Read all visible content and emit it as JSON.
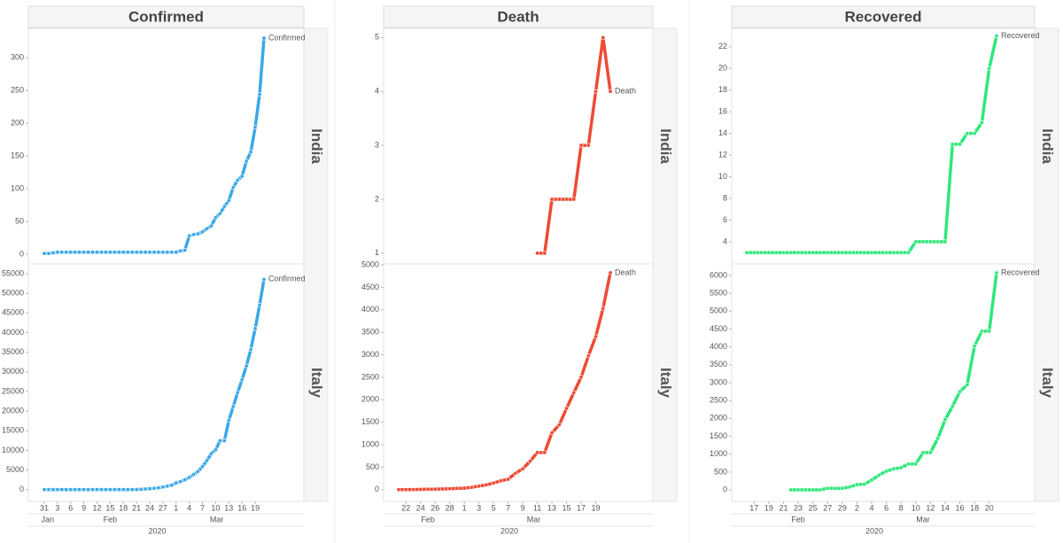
{
  "chart_data": [
    {
      "type": "line",
      "title": "Confirmed",
      "categories": [
        "31",
        null,
        null,
        "3",
        null,
        null,
        "6",
        null,
        null,
        "9",
        null,
        null,
        "12",
        null,
        null,
        "15",
        null,
        null,
        "18",
        null,
        null,
        "21",
        null,
        null,
        "24",
        null,
        null,
        "27",
        null,
        null,
        "1",
        null,
        null,
        "4",
        null,
        null,
        "7",
        null,
        null,
        "10",
        null,
        null,
        "13",
        null,
        null,
        "16",
        null,
        null,
        "19",
        null,
        null
      ],
      "months": [
        "Jan",
        "Feb",
        "Mar"
      ],
      "year": "2020",
      "panels": [
        {
          "row": "India",
          "ylim": [
            -15,
            345
          ],
          "yticks": [
            0,
            50,
            100,
            150,
            200,
            250,
            300
          ],
          "series": [
            {
              "name": "Confirmed",
              "color": "#3aa8e6",
              "values": [
                1,
                1,
                2,
                3,
                3,
                3,
                3,
                3,
                3,
                3,
                3,
                3,
                3,
                3,
                3,
                3,
                3,
                3,
                3,
                3,
                3,
                3,
                3,
                3,
                3,
                3,
                3,
                3,
                3,
                3,
                3,
                5,
                6,
                28,
                30,
                31,
                34,
                39,
                43,
                56,
                62,
                73,
                82,
                102,
                113,
                119,
                142,
                156,
                194,
                244,
                330
              ]
            }
          ]
        },
        {
          "row": "Italy",
          "ylim": [
            -3000,
            57500
          ],
          "yticks": [
            0,
            5000,
            10000,
            15000,
            20000,
            25000,
            30000,
            35000,
            40000,
            45000,
            50000,
            55000
          ],
          "series": [
            {
              "name": "Confirmed",
              "color": "#3aa8e6",
              "values": [
                2,
                2,
                2,
                2,
                2,
                2,
                2,
                2,
                2,
                2,
                2,
                2,
                2,
                2,
                2,
                2,
                2,
                2,
                2,
                2,
                2,
                20,
                62,
                155,
                229,
                322,
                453,
                655,
                888,
                1128,
                1694,
                2036,
                2502,
                3089,
                3858,
                4636,
                5883,
                7375,
                9172,
                10149,
                12462,
                12462,
                17660,
                21157,
                24747,
                27980,
                31506,
                35713,
                41035,
                47021,
                53578
              ]
            }
          ]
        }
      ]
    },
    {
      "type": "line",
      "title": "Death",
      "categories": [
        null,
        "22",
        null,
        "24",
        null,
        "26",
        null,
        "28",
        null,
        "1",
        null,
        "3",
        null,
        "5",
        null,
        "7",
        null,
        "9",
        null,
        "11",
        null,
        "13",
        null,
        "15",
        null,
        "17",
        null,
        "19",
        null,
        null
      ],
      "months": [
        "Feb",
        "Mar"
      ],
      "year": "2020",
      "panels": [
        {
          "row": "India",
          "ylim": [
            0.8,
            5.17
          ],
          "yticks": [
            1,
            2,
            3,
            4,
            5
          ],
          "series": [
            {
              "name": "Death",
              "color": "#ee4a34",
              "values": [
                null,
                null,
                null,
                null,
                null,
                null,
                null,
                null,
                null,
                null,
                null,
                null,
                null,
                null,
                null,
                null,
                null,
                null,
                null,
                1,
                1,
                2,
                2,
                2,
                2,
                3,
                3,
                4,
                5,
                4
              ]
            }
          ]
        },
        {
          "row": "Italy",
          "ylim": [
            -260,
            5020
          ],
          "yticks": [
            0,
            500,
            1000,
            1500,
            2000,
            2500,
            3000,
            3500,
            4000,
            4500,
            5000
          ],
          "series": [
            {
              "name": "Death",
              "color": "#ee4a34",
              "values": [
                1,
                2,
                3,
                7,
                10,
                12,
                17,
                21,
                29,
                34,
                52,
                79,
                107,
                148,
                197,
                233,
                366,
                463,
                631,
                827,
                827,
                1266,
                1441,
                1809,
                2158,
                2503,
                2978,
                3405,
                4032,
                4825
              ]
            }
          ]
        }
      ]
    },
    {
      "type": "line",
      "title": "Recovered",
      "categories": [
        null,
        "17",
        null,
        "19",
        null,
        "21",
        null,
        "23",
        null,
        "25",
        null,
        "27",
        null,
        "29",
        null,
        "2",
        null,
        "4",
        null,
        "6",
        null,
        "8",
        null,
        "10",
        null,
        "12",
        null,
        "14",
        null,
        "16",
        null,
        "18",
        null,
        "20",
        null
      ],
      "months": [
        "Feb",
        "Mar"
      ],
      "year": "2020",
      "panels": [
        {
          "row": "India",
          "ylim": [
            1.95,
            23.7
          ],
          "yticks": [
            4,
            6,
            8,
            10,
            12,
            14,
            16,
            18,
            20,
            22
          ],
          "series": [
            {
              "name": "Recovered",
              "color": "#2ee87a",
              "values": [
                3,
                3,
                3,
                3,
                3,
                3,
                3,
                3,
                3,
                3,
                3,
                3,
                3,
                3,
                3,
                3,
                3,
                3,
                3,
                3,
                3,
                3,
                3,
                4,
                4,
                4,
                4,
                4,
                13,
                13,
                14,
                14,
                15,
                20,
                23
              ]
            }
          ]
        },
        {
          "row": "Italy",
          "ylim": [
            -320,
            6320
          ],
          "yticks": [
            0,
            500,
            1000,
            1500,
            2000,
            2500,
            3000,
            3500,
            4000,
            4500,
            5000,
            5500,
            6000
          ],
          "series": [
            {
              "name": "Recovered",
              "color": "#2ee87a",
              "values": [
                null,
                null,
                null,
                null,
                null,
                null,
                1,
                1,
                1,
                1,
                3,
                45,
                46,
                46,
                83,
                149,
                160,
                276,
                414,
                523,
                589,
                622,
                724,
                724,
                1045,
                1045,
                1439,
                1966,
                2335,
                2749,
                2941,
                4025,
                4440,
                4440,
                6072
              ]
            }
          ]
        }
      ]
    }
  ]
}
